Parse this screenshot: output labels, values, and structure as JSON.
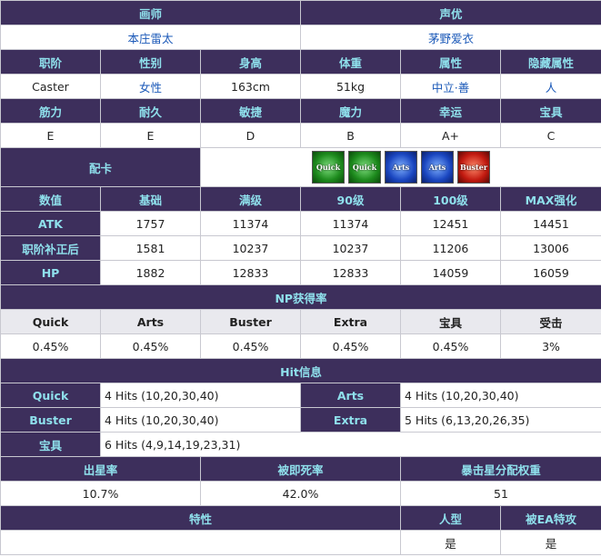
{
  "artist": {
    "header": "画师",
    "value": "本庄雷太"
  },
  "voice": {
    "header": "声优",
    "value": "茅野爱衣"
  },
  "profile": {
    "headers": [
      "职阶",
      "性别",
      "身高",
      "体重",
      "属性",
      "隐藏属性"
    ],
    "values": [
      "Caster",
      "女性",
      "163cm",
      "51kg",
      "中立·善",
      "人"
    ]
  },
  "params": {
    "headers": [
      "筋力",
      "耐久",
      "敏捷",
      "魔力",
      "幸运",
      "宝具"
    ],
    "values": [
      "E",
      "E",
      "D",
      "B",
      "A+",
      "C"
    ]
  },
  "deck": {
    "label": "配卡",
    "cards": [
      {
        "type": "quick",
        "label": "Quick"
      },
      {
        "type": "quick",
        "label": "Quick"
      },
      {
        "type": "arts",
        "label": "Arts"
      },
      {
        "type": "arts",
        "label": "Arts"
      },
      {
        "type": "buster",
        "label": "Buster"
      }
    ]
  },
  "stats": {
    "headers": [
      "数值",
      "基础",
      "满级",
      "90级",
      "100级",
      "MAX强化"
    ],
    "rows": [
      {
        "label": "ATK",
        "values": [
          "1757",
          "11374",
          "11374",
          "12451",
          "14451"
        ]
      },
      {
        "label": "职阶补正后",
        "values": [
          "1581",
          "10237",
          "10237",
          "11206",
          "13006"
        ]
      },
      {
        "label": "HP",
        "values": [
          "1882",
          "12833",
          "12833",
          "14059",
          "16059"
        ]
      }
    ]
  },
  "np": {
    "title": "NP获得率",
    "headers": [
      "Quick",
      "Arts",
      "Buster",
      "Extra",
      "宝具",
      "受击"
    ],
    "values": [
      "0.45%",
      "0.45%",
      "0.45%",
      "0.45%",
      "0.45%",
      "3%"
    ]
  },
  "hits": {
    "title": "Hit信息",
    "quick": {
      "label": "Quick",
      "value": "4 Hits (10,20,30,40)"
    },
    "arts": {
      "label": "Arts",
      "value": "4 Hits (10,20,30,40)"
    },
    "buster": {
      "label": "Buster",
      "value": "4 Hits (10,20,30,40)"
    },
    "extra": {
      "label": "Extra",
      "value": "5 Hits (6,13,20,26,35)"
    },
    "np": {
      "label": "宝具",
      "value": "6 Hits (4,9,14,19,23,31)"
    }
  },
  "rates": {
    "headers": [
      "出星率",
      "被即死率",
      "暴击星分配权重"
    ],
    "values": [
      "10.7%",
      "42.0%",
      "51"
    ]
  },
  "traits": {
    "headers": [
      "特性",
      "人型",
      "被EA特攻"
    ],
    "values": [
      "",
      "是",
      "是"
    ]
  }
}
